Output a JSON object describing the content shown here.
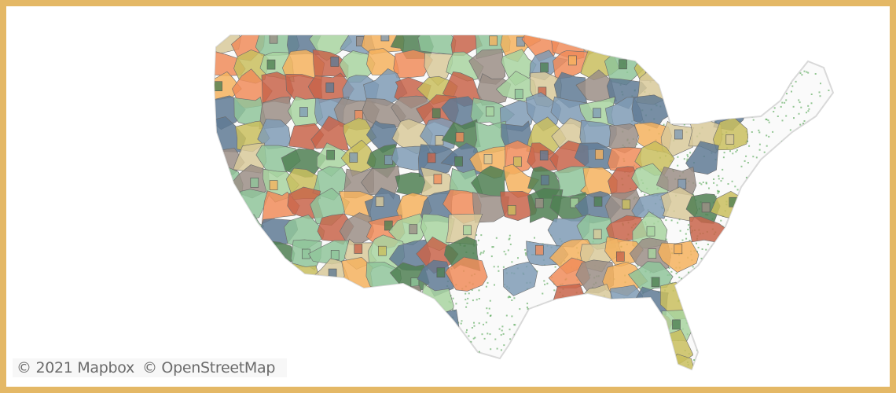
{
  "map": {
    "region": "Contiguous United States",
    "layers": [
      "shaded regions",
      "green dot density"
    ],
    "palette": [
      "#7f9bb5",
      "#5f7a94",
      "#f08c5a",
      "#f5b25e",
      "#d8c99a",
      "#8fc49a",
      "#c9be5e",
      "#9b8e86",
      "#c8644a",
      "#4f7f52",
      "#a8d4a0"
    ],
    "dot_color": "#3f9a3f",
    "frame_color": "#e4b866"
  },
  "attribution": {
    "mapbox": "© 2021 Mapbox",
    "osm": "© OpenStreetMap"
  }
}
